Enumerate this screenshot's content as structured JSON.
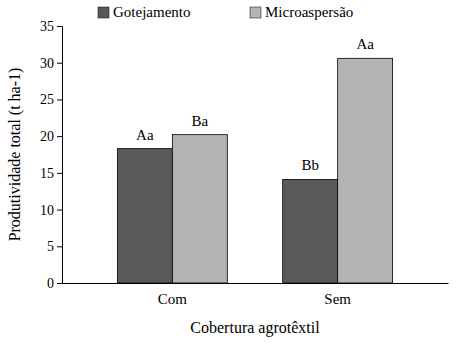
{
  "chart_data": {
    "type": "bar",
    "categories": [
      "Com",
      "Sem"
    ],
    "series": [
      {
        "name": "Gotejamento",
        "color": "#595959",
        "values": [
          18.3,
          14.1
        ],
        "annotations": [
          "Aa",
          "Bb"
        ]
      },
      {
        "name": "Microaspersão",
        "color": "#b3b3b3",
        "values": [
          20.2,
          30.6
        ],
        "annotations": [
          "Ba",
          "Aa"
        ]
      }
    ],
    "x_label": "Cobertura agrotêxtil",
    "y_label": "Produtividade total (t ha-1)",
    "ylim": [
      0,
      35
    ],
    "yticks": [
      0,
      5,
      10,
      15,
      20,
      25,
      30,
      35
    ],
    "grid": false,
    "legend": "top"
  }
}
